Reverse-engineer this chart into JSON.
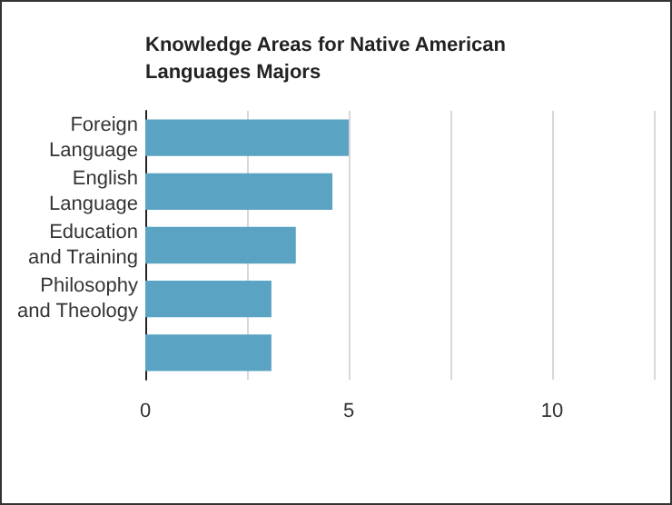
{
  "chart_data": {
    "type": "bar",
    "orientation": "horizontal",
    "title": "Knowledge Areas for Native American Languages Majors",
    "categories": [
      "Foreign Language",
      "English Language",
      "Education and Training",
      "Philosophy and Theology",
      null
    ],
    "values": [
      5.0,
      4.6,
      3.7,
      3.1,
      3.1
    ],
    "color": "#5ba3c3",
    "xlim": [
      0,
      12.5
    ],
    "xticks": [
      0,
      {
        "value": 2.5,
        "label": null
      },
      5,
      {
        "value": 7.5,
        "label": null
      },
      10,
      {
        "value": 12.5,
        "label": null
      }
    ],
    "grid": "x"
  }
}
